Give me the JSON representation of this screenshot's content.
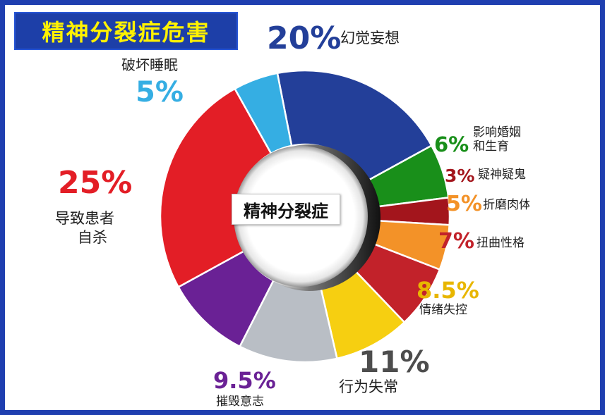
{
  "title": "精神分裂症危害",
  "chart_data": {
    "type": "pie",
    "center_label": "精神分裂症",
    "slices": [
      {
        "label": "幻觉妄想",
        "value": 20,
        "value_label": "20%",
        "color": "#233f99"
      },
      {
        "label": "影响婚姻和生育",
        "label_lines": [
          "影响婚姻",
          "和生育"
        ],
        "value": 6,
        "value_label": "6%",
        "color": "#198f1a"
      },
      {
        "label": "疑神疑鬼",
        "value": 3,
        "value_label": "3%",
        "color": "#a3151c"
      },
      {
        "label": "折磨肉体",
        "label_visible": "折磨肉体",
        "value": 5,
        "value_label": "5%",
        "color": "#f39228"
      },
      {
        "label": "扭曲性格",
        "value": 7,
        "value_label": "7%",
        "color": "#c2222a"
      },
      {
        "label": "情绪失控",
        "value": 8.5,
        "value_label": "8.5%",
        "color": "#f6cf11"
      },
      {
        "label": "行为失常",
        "value": 11,
        "value_label": "11%",
        "color": "#b9bec5"
      },
      {
        "label": "摧毁意志",
        "value": 9.5,
        "value_label": "9.5%",
        "color": "#6a2195"
      },
      {
        "label": "导致患者自杀",
        "label_lines": [
          "导致患者",
          "自杀"
        ],
        "value": 25,
        "value_label": "25%",
        "color": "#e31e26"
      },
      {
        "label": "破坏睡眠",
        "value": 5,
        "value_label": "5%",
        "color": "#35aee3"
      }
    ]
  }
}
